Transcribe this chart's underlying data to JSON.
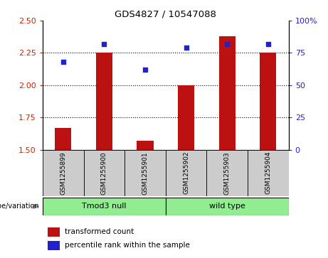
{
  "title": "GDS4827 / 10547088",
  "samples": [
    "GSM1255899",
    "GSM1255900",
    "GSM1255901",
    "GSM1255902",
    "GSM1255903",
    "GSM1255904"
  ],
  "red_values": [
    1.67,
    2.25,
    1.57,
    2.0,
    2.38,
    2.25
  ],
  "blue_values": [
    68,
    82,
    62,
    79,
    82,
    82
  ],
  "ylim_left": [
    1.5,
    2.5
  ],
  "ylim_right": [
    0,
    100
  ],
  "yticks_left": [
    1.5,
    1.75,
    2.0,
    2.25,
    2.5
  ],
  "yticks_right": [
    0,
    25,
    50,
    75,
    100
  ],
  "ytick_labels_right": [
    "0",
    "25",
    "50",
    "75",
    "100%"
  ],
  "groups": [
    {
      "label": "Tmod3 null",
      "span": [
        0,
        3
      ],
      "color": "#90EE90"
    },
    {
      "label": "wild type",
      "span": [
        3,
        6
      ],
      "color": "#90EE90"
    }
  ],
  "genotype_label": "genotype/variation",
  "legend_red": "transformed count",
  "legend_blue": "percentile rank within the sample",
  "bar_color": "#BB1111",
  "dot_color": "#2222CC",
  "bg_color": "#CCCCCC",
  "plot_bg": "#FFFFFF",
  "left_tick_color": "#CC2200",
  "right_tick_color": "#2222CC",
  "grid_dotted_vals": [
    1.75,
    2.0,
    2.25
  ],
  "bar_width": 0.4
}
